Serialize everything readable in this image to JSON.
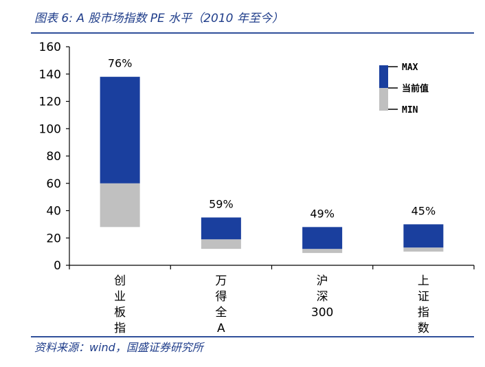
{
  "title": "图表 6:  A 股市场指数 PE 水平（2010 年至今）",
  "source": "资料来源：wind，国盛证券研究所",
  "colors": {
    "range_upper": "#1a3f9e",
    "range_lower": "#c0c0c0",
    "axis": "#000000",
    "title_text": "#1f3d8a",
    "rule": "#2f4f9a"
  },
  "chart_data": {
    "type": "bar",
    "subtype": "floating-range (min / current / max)",
    "categories": [
      "创业板指",
      "万得全A",
      "沪深300",
      "上证指数"
    ],
    "series": [
      {
        "name": "MIN",
        "values": [
          28,
          12,
          9,
          10
        ]
      },
      {
        "name": "当前值",
        "values": [
          60,
          19,
          12,
          13
        ]
      },
      {
        "name": "MAX",
        "values": [
          138,
          35,
          28,
          30
        ]
      }
    ],
    "data_labels": [
      "76%",
      "59%",
      "49%",
      "45%"
    ],
    "ylim": [
      0,
      160
    ],
    "yticks": [
      0,
      20,
      40,
      60,
      80,
      100,
      120,
      140,
      160
    ],
    "legend": {
      "position": "top-right",
      "labels": {
        "max": "MAX",
        "current": "当前值",
        "min": "MIN"
      }
    },
    "grid": false
  }
}
